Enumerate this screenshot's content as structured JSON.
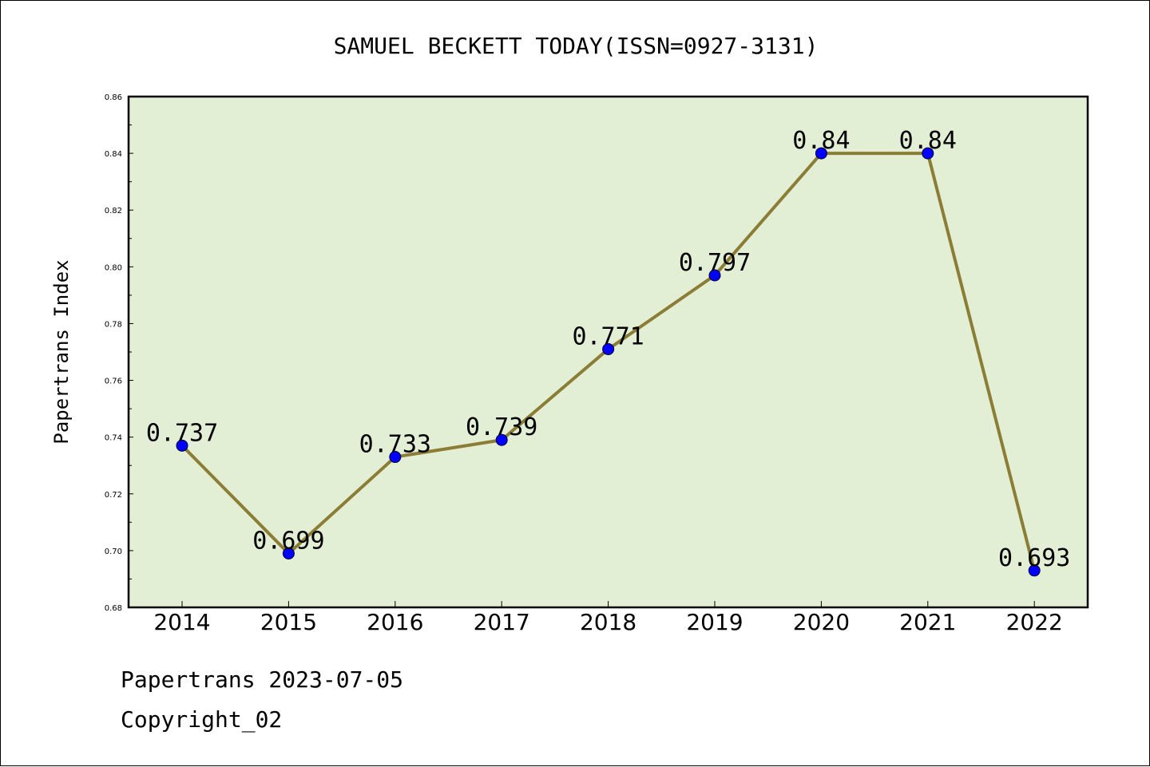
{
  "chart_data": {
    "type": "line",
    "title": "SAMUEL BECKETT TODAY(ISSN=0927-3131)",
    "xlabel": "",
    "ylabel": "Papertrans Index",
    "categories": [
      "2014",
      "2015",
      "2016",
      "2017",
      "2018",
      "2019",
      "2020",
      "2021",
      "2022"
    ],
    "series": [
      {
        "values": [
          0.737,
          0.699,
          0.733,
          0.739,
          0.771,
          0.797,
          0.84,
          0.84,
          0.693
        ]
      }
    ],
    "data_labels": [
      "0.737",
      "0.699",
      "0.733",
      "0.739",
      "0.771",
      "0.797",
      "0.84",
      "0.84",
      "0.693"
    ],
    "ylim": [
      0.68,
      0.86
    ],
    "yticks": [
      "0.68",
      "0.70",
      "0.72",
      "0.74",
      "0.76",
      "0.78",
      "0.80",
      "0.82",
      "0.84",
      "0.86"
    ],
    "grid": false,
    "colors": {
      "plot_background": "#e2efd4",
      "line": "#8b7d35",
      "marker": "#0000ff"
    }
  },
  "footer": {
    "line1": "Papertrans 2023-07-05",
    "line2": "Copyright_02"
  }
}
